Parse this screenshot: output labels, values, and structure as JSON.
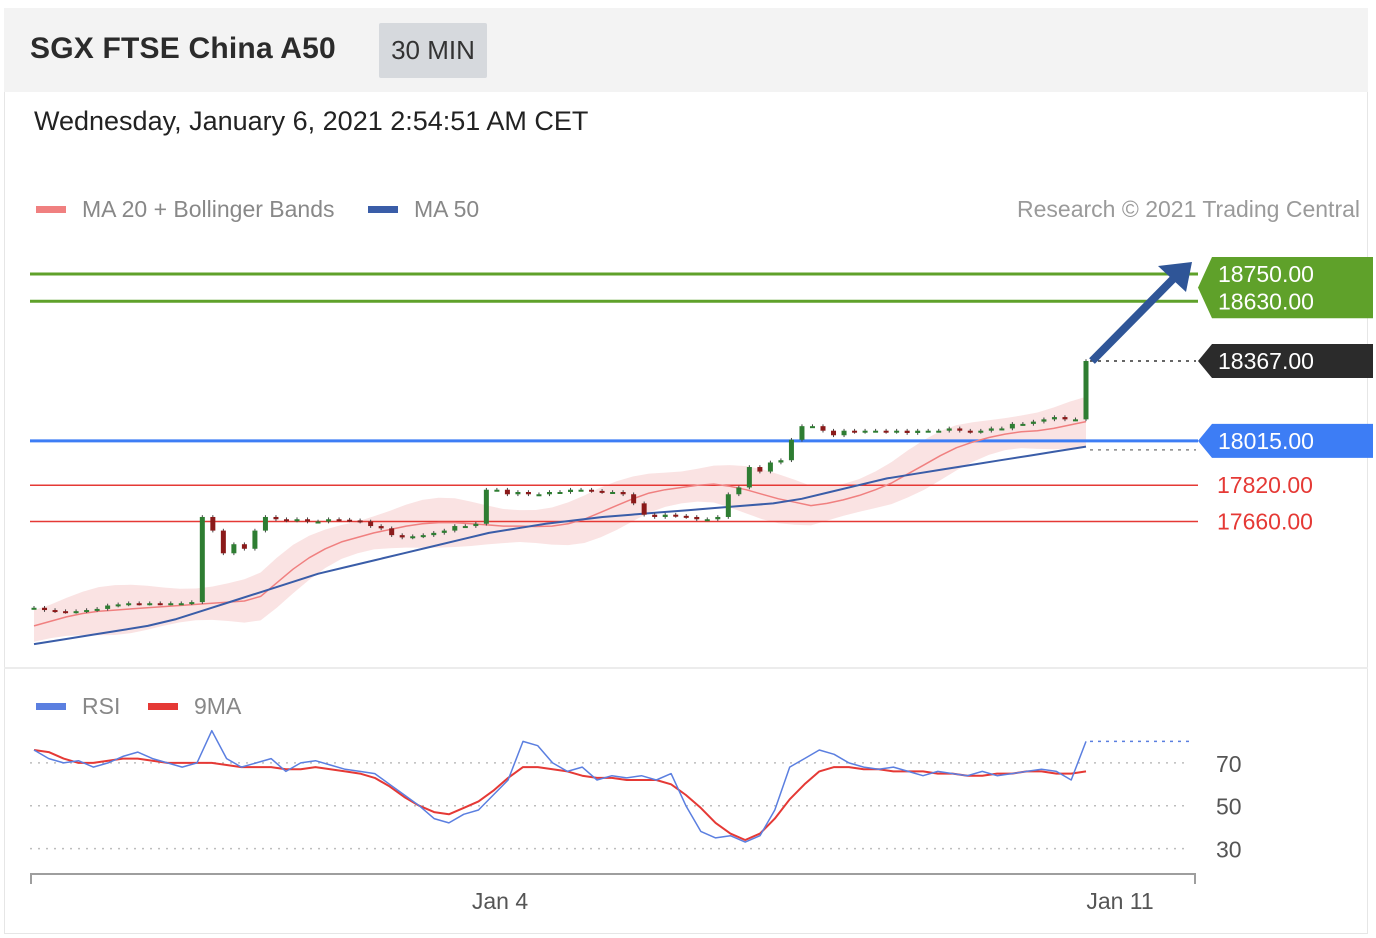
{
  "header": {
    "title": "SGX FTSE China A50",
    "timeframe": "30 MIN"
  },
  "timestamp": "Wednesday, January 6, 2021 2:54:51 AM CET",
  "legend": {
    "ma20": {
      "label": "MA 20 + Bollinger Bands",
      "color": "#f08080"
    },
    "ma50": {
      "label": "MA 50",
      "color": "#3a5da8"
    },
    "credit": "Research © 2021 Trading Central"
  },
  "rsi_legend": {
    "rsi": {
      "label": "RSI",
      "color": "#5b7fe0"
    },
    "ma9": {
      "label": "9MA",
      "color": "#e53935"
    }
  },
  "chart_data": [
    {
      "type": "line",
      "title": "SGX FTSE China A50",
      "ylim": [
        17050,
        18900
      ],
      "x_ticks": [
        "Jan 4",
        "Jan 11"
      ],
      "levels": [
        {
          "value": 18750.0,
          "label": "18750.00",
          "kind": "target",
          "color": "#5fa12a"
        },
        {
          "value": 18630.0,
          "label": "18630.00",
          "kind": "target",
          "color": "#5fa12a"
        },
        {
          "value": 18367.0,
          "label": "18367.00",
          "kind": "last",
          "color": "#2b2b2b"
        },
        {
          "value": 18015.0,
          "label": "18015.00",
          "kind": "pivot",
          "color": "#3d7df5"
        },
        {
          "value": 17820.0,
          "label": "17820.00",
          "kind": "support",
          "color": "#e53935"
        },
        {
          "value": 17660.0,
          "label": "17660.00",
          "kind": "support",
          "color": "#e53935"
        }
      ],
      "series": [
        {
          "kind": "price",
          "values": [
            17280,
            17270,
            17265,
            17262,
            17265,
            17270,
            17275,
            17290,
            17295,
            17300,
            17298,
            17300,
            17299,
            17300,
            17300,
            17305,
            17680,
            17620,
            17520,
            17560,
            17540,
            17620,
            17680,
            17670,
            17665,
            17670,
            17660,
            17660,
            17670,
            17668,
            17665,
            17660,
            17640,
            17630,
            17600,
            17590,
            17595,
            17600,
            17610,
            17620,
            17640,
            17640,
            17650,
            17800,
            17800,
            17780,
            17790,
            17780,
            17780,
            17790,
            17790,
            17800,
            17800,
            17795,
            17790,
            17790,
            17780,
            17740,
            17690,
            17680,
            17690,
            17685,
            17680,
            17670,
            17670,
            17680,
            17780,
            17810,
            17900,
            17880,
            17920,
            17930,
            18020,
            18080,
            18080,
            18060,
            18040,
            18060,
            18055,
            18060,
            18060,
            18055,
            18060,
            18050,
            18060,
            18060,
            18060,
            18070,
            18060,
            18055,
            18060,
            18070,
            18070,
            18090,
            18090,
            18100,
            18110,
            18120,
            18110,
            18110,
            18367
          ]
        },
        {
          "kind": "ma20",
          "values": [
            17200,
            17220,
            17240,
            17255,
            17265,
            17270,
            17275,
            17280,
            17285,
            17290,
            17295,
            17300,
            17305,
            17310,
            17330,
            17390,
            17450,
            17500,
            17540,
            17570,
            17590,
            17610,
            17625,
            17640,
            17650,
            17655,
            17655,
            17650,
            17645,
            17640,
            17640,
            17638,
            17640,
            17650,
            17670,
            17700,
            17730,
            17760,
            17785,
            17800,
            17810,
            17820,
            17825,
            17815,
            17800,
            17780,
            17760,
            17745,
            17730,
            17740,
            17755,
            17775,
            17800,
            17830,
            17870,
            17910,
            17950,
            17985,
            18010,
            18030,
            18045,
            18055,
            18060,
            18070,
            18085,
            18100
          ]
        },
        {
          "kind": "ma50",
          "values": [
            17120,
            17140,
            17160,
            17180,
            17200,
            17230,
            17270,
            17310,
            17350,
            17390,
            17430,
            17460,
            17490,
            17520,
            17550,
            17580,
            17610,
            17630,
            17650,
            17665,
            17680,
            17690,
            17700,
            17710,
            17720,
            17730,
            17740,
            17760,
            17790,
            17820,
            17850,
            17870,
            17890,
            17910,
            17930,
            17950,
            17970,
            17990
          ]
        }
      ]
    },
    {
      "type": "line",
      "title": "RSI",
      "ylim": [
        20,
        90
      ],
      "y_ticks": [
        70,
        50,
        30
      ],
      "series": [
        {
          "name": "RSI",
          "values": [
            76,
            72,
            70,
            71,
            68,
            70,
            73,
            75,
            72,
            70,
            68,
            70,
            85,
            72,
            68,
            70,
            72,
            66,
            70,
            71,
            69,
            67,
            66,
            65,
            60,
            55,
            50,
            44,
            42,
            46,
            48,
            55,
            62,
            80,
            78,
            70,
            66,
            68,
            62,
            64,
            63,
            64,
            62,
            65,
            50,
            38,
            35,
            36,
            33,
            36,
            48,
            68,
            72,
            76,
            74,
            70,
            68,
            67,
            68,
            66,
            64,
            66,
            65,
            64,
            66,
            64,
            65,
            66,
            67,
            66,
            62,
            80
          ]
        },
        {
          "name": "9MA",
          "values": [
            76,
            75,
            72,
            70,
            70,
            71,
            72,
            72,
            71,
            70,
            70,
            70,
            70,
            69,
            68,
            68,
            68,
            67,
            67,
            68,
            67,
            66,
            65,
            63,
            59,
            54,
            50,
            47,
            46,
            49,
            52,
            57,
            63,
            68,
            68,
            67,
            66,
            64,
            63,
            63,
            62,
            62,
            62,
            60,
            55,
            49,
            42,
            37,
            34,
            37,
            44,
            53,
            60,
            66,
            68,
            68,
            67,
            67,
            66,
            66,
            66,
            65,
            65,
            64,
            64,
            65,
            65,
            66,
            66,
            65,
            65,
            66
          ]
        }
      ]
    }
  ]
}
